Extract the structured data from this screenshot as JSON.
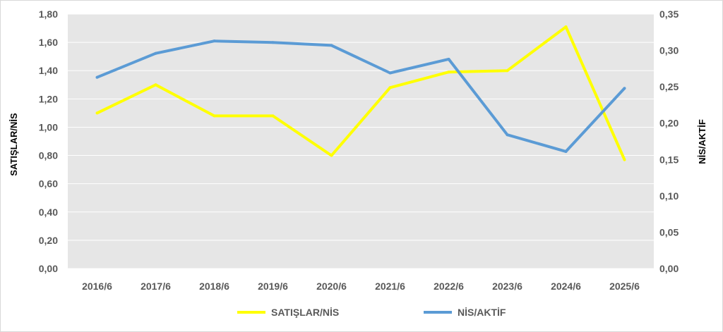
{
  "chart_data": {
    "type": "line",
    "categories": [
      "2016/6",
      "2017/6",
      "2018/6",
      "2019/6",
      "2020/6",
      "2021/6",
      "2022/6",
      "2023/6",
      "2024/6",
      "2025/6"
    ],
    "series": [
      {
        "name": "SATIŞLAR/NİS",
        "axis": "left",
        "color": "#FFFF00",
        "values": [
          1.1,
          1.3,
          1.08,
          1.08,
          0.8,
          1.28,
          1.39,
          1.4,
          1.71,
          0.77
        ]
      },
      {
        "name": "NİS/AKTİF",
        "axis": "right",
        "color": "#5B9BD5",
        "values": [
          0.263,
          0.296,
          0.313,
          0.311,
          0.307,
          0.269,
          0.288,
          0.184,
          0.161,
          0.248
        ]
      }
    ],
    "ylabel": "SATIŞLAR/NİS",
    "y2label": "NİS/AKTİF",
    "ylim": [
      0,
      1.8
    ],
    "y2lim": [
      0,
      0.35
    ],
    "yticks": [
      "0,00",
      "0,20",
      "0,40",
      "0,60",
      "0,80",
      "1,00",
      "1,20",
      "1,40",
      "1,60",
      "1,80"
    ],
    "y2ticks": [
      "0,00",
      "0,05",
      "0,10",
      "0,15",
      "0,20",
      "0,25",
      "0,30",
      "0,35"
    ],
    "grid": true,
    "plot_background": "#E6E6E6",
    "legend": "bottom"
  }
}
